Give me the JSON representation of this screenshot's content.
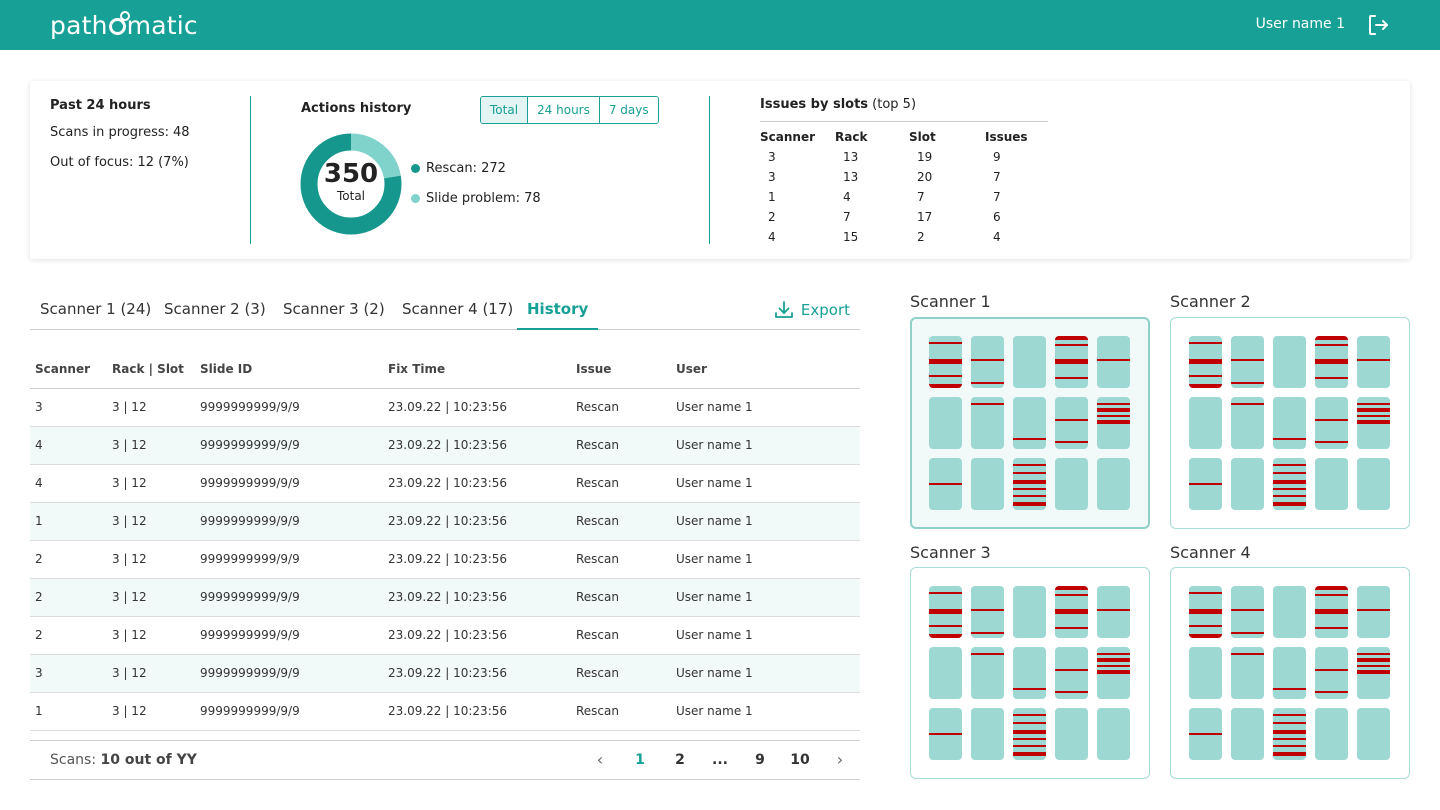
{
  "header": {
    "logo_text_left": "path",
    "logo_text_right": "matic",
    "user_name": "User name 1"
  },
  "summary": {
    "past24": {
      "title": "Past 24 hours",
      "scans_label": "Scans in progress:",
      "scans_value": "48",
      "focus_label": "Out of focus:",
      "focus_value": "12 (7%)"
    },
    "actions": {
      "title": "Actions history",
      "filters": [
        "Total",
        "24 hours",
        "7 days"
      ],
      "active_filter": "Total",
      "total_value": "350",
      "total_label": "Total",
      "rescan_label": "Rescan: 272",
      "slide_problem_label": "Slide problem: 78",
      "rescan_count": 272,
      "slide_problem_count": 78,
      "colors": {
        "rescan": "#15978d",
        "slide_problem": "#7fd3cb"
      }
    },
    "issues": {
      "title_bold": "Issues by slots",
      "title_rest": " (top 5)",
      "columns": [
        "Scanner",
        "Rack",
        "Slot",
        "Issues"
      ],
      "rows": [
        [
          "3",
          "13",
          "19",
          "9"
        ],
        [
          "3",
          "13",
          "20",
          "7"
        ],
        [
          "1",
          "4",
          "7",
          "7"
        ],
        [
          "2",
          "7",
          "17",
          "6"
        ],
        [
          "4",
          "15",
          "2",
          "4"
        ]
      ]
    }
  },
  "tabs": {
    "items": [
      "Scanner 1 (24)",
      "Scanner 2 (3)",
      "Scanner 3 (2)",
      "Scanner 4 (17)",
      "History"
    ],
    "active": "History",
    "export_label": "Export"
  },
  "history_table": {
    "columns": [
      "Scanner",
      "Rack | Slot",
      "Slide ID",
      "Fix Time",
      "Issue",
      "User"
    ],
    "rows": [
      [
        "3",
        "3 | 12",
        "9999999999/9/9",
        "23.09.22 | 10:23:56",
        "Rescan",
        "User name 1"
      ],
      [
        "4",
        "3 | 12",
        "9999999999/9/9",
        "23.09.22 | 10:23:56",
        "Rescan",
        "User name 1"
      ],
      [
        "4",
        "3 | 12",
        "9999999999/9/9",
        "23.09.22 | 10:23:56",
        "Rescan",
        "User name 1"
      ],
      [
        "1",
        "3 | 12",
        "9999999999/9/9",
        "23.09.22 | 10:23:56",
        "Rescan",
        "User name 1"
      ],
      [
        "2",
        "3 | 12",
        "9999999999/9/9",
        "23.09.22 | 10:23:56",
        "Rescan",
        "User name 1"
      ],
      [
        "2",
        "3 | 12",
        "9999999999/9/9",
        "23.09.22 | 10:23:56",
        "Rescan",
        "User name 1"
      ],
      [
        "2",
        "3 | 12",
        "9999999999/9/9",
        "23.09.22 | 10:23:56",
        "Rescan",
        "User name 1"
      ],
      [
        "3",
        "3 | 12",
        "9999999999/9/9",
        "23.09.22 | 10:23:56",
        "Rescan",
        "User name 1"
      ],
      [
        "1",
        "3 | 12",
        "9999999999/9/9",
        "23.09.22 | 10:23:56",
        "Rescan",
        "User name 1"
      ]
    ]
  },
  "pagination": {
    "scans_label": "Scans:",
    "scans_value": "10 out of YY",
    "pages": [
      "1",
      "2",
      "...",
      "9",
      "10"
    ],
    "active_page": "1",
    "prev_arrow": "‹",
    "next_arrow": "›"
  },
  "scanners": [
    {
      "title": "Scanner 1",
      "selected": true
    },
    {
      "title": "Scanner 2",
      "selected": false
    },
    {
      "title": "Scanner 3",
      "selected": false
    },
    {
      "title": "Scanner 4",
      "selected": false
    }
  ],
  "colors": {
    "accent": "#17a096",
    "rack": "#9dd8d2",
    "issue_mark": "#c00000"
  }
}
